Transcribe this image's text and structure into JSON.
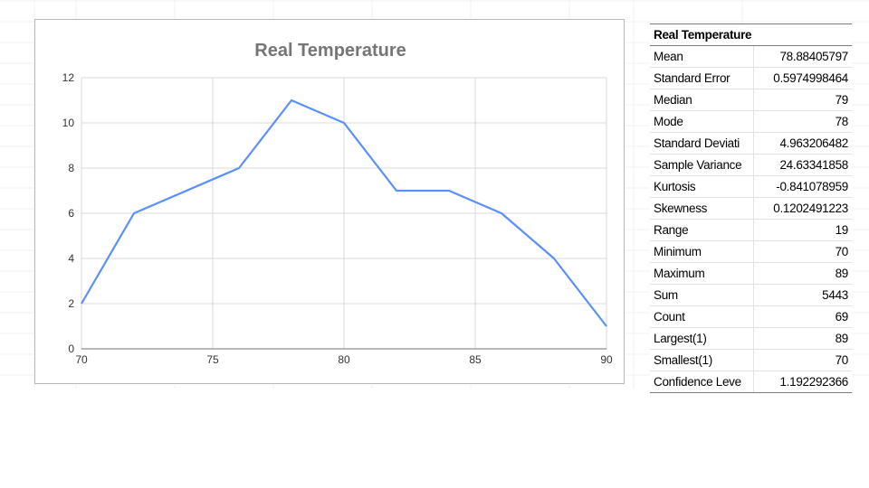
{
  "chart_data": {
    "type": "line",
    "title": "Real Temperature",
    "xlabel": "",
    "ylabel": "",
    "xlim": [
      70,
      90
    ],
    "ylim": [
      0,
      12
    ],
    "x_ticks": [
      70,
      75,
      80,
      85,
      90
    ],
    "y_ticks": [
      0,
      2,
      4,
      6,
      8,
      10,
      12
    ],
    "grid": true,
    "legend": "none",
    "series": [
      {
        "x": [
          70,
          72,
          76,
          78,
          80,
          82,
          84,
          86,
          88,
          90
        ],
        "y": [
          2,
          6,
          8,
          11,
          10,
          7,
          7,
          6,
          4,
          1
        ],
        "color": "#5b8ff9"
      }
    ]
  },
  "stats": {
    "header": "Real Temperature",
    "rows": [
      {
        "label": "Mean",
        "value": "78.88405797"
      },
      {
        "label": "Standard Error",
        "value": "0.5974998464"
      },
      {
        "label": "Median",
        "value": "79"
      },
      {
        "label": "Mode",
        "value": "78"
      },
      {
        "label": "Standard Deviati",
        "value": "4.963206482"
      },
      {
        "label": "Sample Variance",
        "value": "24.63341858"
      },
      {
        "label": "Kurtosis",
        "value": "-0.841078959"
      },
      {
        "label": "Skewness",
        "value": "0.1202491223"
      },
      {
        "label": "Range",
        "value": "19"
      },
      {
        "label": "Minimum",
        "value": "70"
      },
      {
        "label": "Maximum",
        "value": "89"
      },
      {
        "label": "Sum",
        "value": "5443"
      },
      {
        "label": "Count",
        "value": "69"
      },
      {
        "label": "Largest(1)",
        "value": "89"
      },
      {
        "label": "Smallest(1)",
        "value": "70"
      },
      {
        "label": "Confidence Leve",
        "value": "1.192292366"
      }
    ]
  },
  "colors": {
    "line": "#5b8ff9",
    "grid": "#d9d9d9",
    "axis": "#a0a0a0",
    "title": "#757575",
    "tick_label": "#333333"
  }
}
